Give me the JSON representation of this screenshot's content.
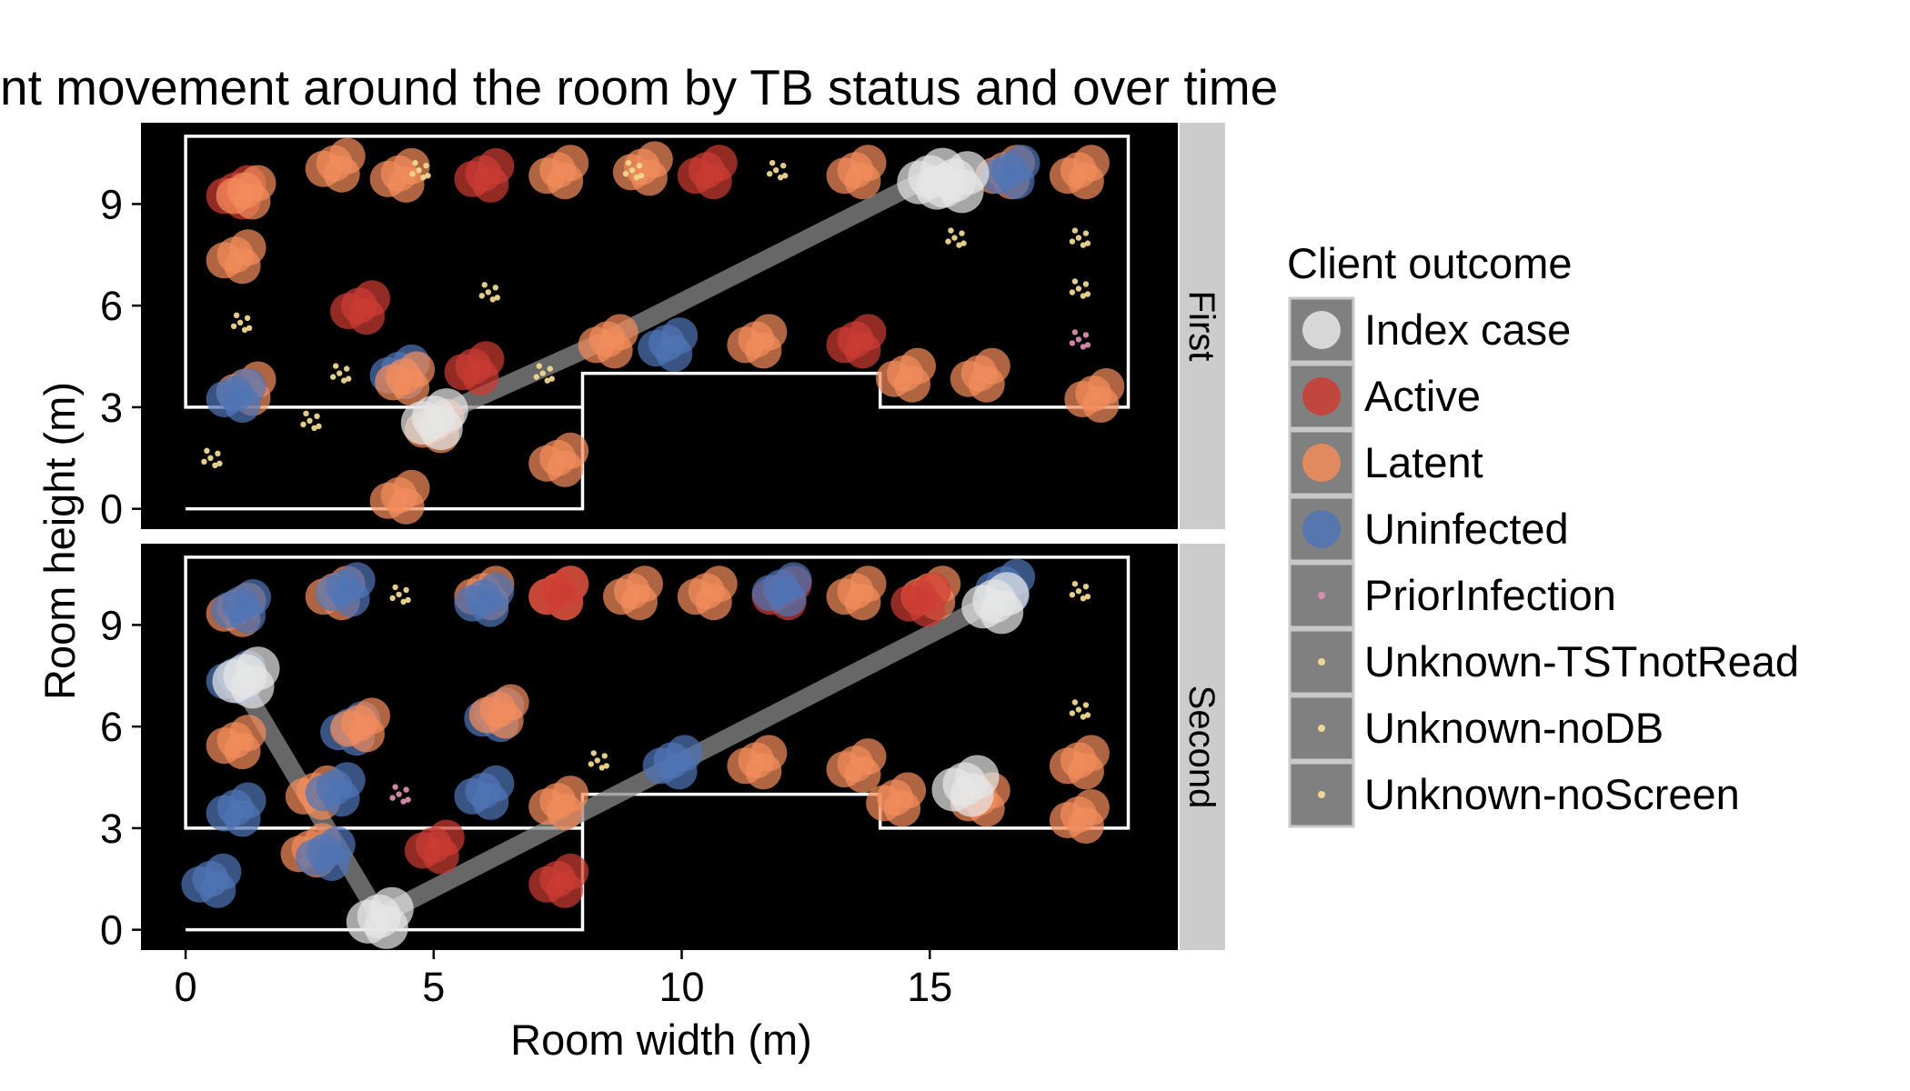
{
  "chart_data": {
    "type": "scatter",
    "title": "nt movement around the room by TB status and over time",
    "xlabel": "Room width (m)",
    "ylabel": "Room height (m)",
    "xlim": [
      -0.9,
      20.0
    ],
    "ylim": [
      -0.6,
      11.4
    ],
    "x_ticks": [
      0,
      5,
      10,
      15
    ],
    "y_ticks": [
      0,
      3,
      6,
      9
    ],
    "background": "#000000",
    "grid": false,
    "legend": {
      "title": "Client outcome",
      "placement": "right",
      "entries": [
        {
          "label": "Index case",
          "color": "#e6e6e6",
          "size": "large"
        },
        {
          "label": "Active",
          "color": "#cc3c33",
          "size": "large"
        },
        {
          "label": "Latent",
          "color": "#f28c5b",
          "size": "large"
        },
        {
          "label": "Uninfected",
          "color": "#4f74b5",
          "size": "large"
        },
        {
          "label": "PriorInfection",
          "color": "#d98cb0",
          "size": "small"
        },
        {
          "label": "Unknown-TSTnotRead",
          "color": "#f0d890",
          "size": "small"
        },
        {
          "label": "Unknown-noDB",
          "color": "#f0d890",
          "size": "small"
        },
        {
          "label": "Unknown-noScreen",
          "color": "#f0d890",
          "size": "small"
        }
      ]
    },
    "room_outline": [
      [
        0,
        0
      ],
      [
        8,
        0
      ],
      [
        8,
        4
      ],
      [
        14,
        4
      ],
      [
        14,
        3
      ],
      [
        19,
        3
      ],
      [
        19,
        11
      ],
      [
        0,
        11
      ],
      [
        0,
        3
      ],
      [
        8,
        3
      ]
    ],
    "panels": [
      {
        "label": "First",
        "index_path": [
          [
            5.0,
            2.7
          ],
          [
            8.5,
            5.0
          ],
          [
            15.0,
            9.8
          ]
        ],
        "points": [
          {
            "x": 1.0,
            "y": 9.4,
            "status": "Active"
          },
          {
            "x": 1.2,
            "y": 9.4,
            "status": "Latent"
          },
          {
            "x": 1.0,
            "y": 7.5,
            "status": "Latent"
          },
          {
            "x": 1.2,
            "y": 3.6,
            "status": "Latent"
          },
          {
            "x": 1.0,
            "y": 3.4,
            "status": "Uninfected"
          },
          {
            "x": 3.0,
            "y": 10.2,
            "status": "Latent"
          },
          {
            "x": 3.5,
            "y": 6.0,
            "status": "Active"
          },
          {
            "x": 4.3,
            "y": 9.9,
            "status": "Latent"
          },
          {
            "x": 4.3,
            "y": 4.1,
            "status": "Uninfected"
          },
          {
            "x": 4.4,
            "y": 3.9,
            "status": "Latent"
          },
          {
            "x": 6.0,
            "y": 9.9,
            "status": "Active"
          },
          {
            "x": 5.8,
            "y": 4.2,
            "status": "Active"
          },
          {
            "x": 4.3,
            "y": 0.4,
            "status": "Latent"
          },
          {
            "x": 5.0,
            "y": 2.5,
            "status": "Latent"
          },
          {
            "x": 7.5,
            "y": 10.0,
            "status": "Latent"
          },
          {
            "x": 7.5,
            "y": 1.5,
            "status": "Latent"
          },
          {
            "x": 8.5,
            "y": 5.0,
            "status": "Latent"
          },
          {
            "x": 9.2,
            "y": 10.1,
            "status": "Latent"
          },
          {
            "x": 9.7,
            "y": 4.9,
            "status": "Uninfected"
          },
          {
            "x": 10.5,
            "y": 10.0,
            "status": "Active"
          },
          {
            "x": 11.5,
            "y": 5.0,
            "status": "Latent"
          },
          {
            "x": 13.5,
            "y": 10.0,
            "status": "Latent"
          },
          {
            "x": 13.5,
            "y": 5.0,
            "status": "Active"
          },
          {
            "x": 14.5,
            "y": 4.0,
            "status": "Latent"
          },
          {
            "x": 16.0,
            "y": 4.0,
            "status": "Latent"
          },
          {
            "x": 16.5,
            "y": 10.0,
            "status": "Latent"
          },
          {
            "x": 16.6,
            "y": 10.0,
            "status": "Uninfected"
          },
          {
            "x": 18.0,
            "y": 10.0,
            "status": "Latent"
          },
          {
            "x": 18.3,
            "y": 3.4,
            "status": "Latent"
          },
          {
            "x": 18.0,
            "y": 5.0,
            "status": "PriorInfection"
          },
          {
            "x": 0.5,
            "y": 1.5,
            "status": "Unknown-TSTnotRead"
          },
          {
            "x": 1.1,
            "y": 5.5,
            "status": "Unknown-TSTnotRead"
          },
          {
            "x": 2.5,
            "y": 2.6,
            "status": "Unknown-noDB"
          },
          {
            "x": 3.1,
            "y": 4.0,
            "status": "Unknown-noDB"
          },
          {
            "x": 4.7,
            "y": 10.0,
            "status": "Unknown-noScreen"
          },
          {
            "x": 6.1,
            "y": 6.4,
            "status": "Unknown-TSTnotRead"
          },
          {
            "x": 7.2,
            "y": 4.0,
            "status": "Unknown-noScreen"
          },
          {
            "x": 9.0,
            "y": 10.0,
            "status": "Unknown-noScreen"
          },
          {
            "x": 11.9,
            "y": 10.0,
            "status": "Unknown-noDB"
          },
          {
            "x": 15.5,
            "y": 8.0,
            "status": "Unknown-noDB"
          },
          {
            "x": 18.0,
            "y": 8.0,
            "status": "Unknown-noScreen"
          },
          {
            "x": 18.0,
            "y": 6.5,
            "status": "Unknown-noScreen"
          },
          {
            "x": 15.0,
            "y": 9.8,
            "status": "Index case"
          },
          {
            "x": 15.5,
            "y": 9.7,
            "status": "Index case"
          },
          {
            "x": 5.0,
            "y": 2.7,
            "status": "Index case"
          }
        ]
      },
      {
        "label": "Second",
        "index_path": [
          [
            1.1,
            7.3
          ],
          [
            3.9,
            0.4
          ],
          [
            16.3,
            9.7
          ]
        ],
        "points": [
          {
            "x": 1.0,
            "y": 9.5,
            "status": "Latent"
          },
          {
            "x": 1.1,
            "y": 9.6,
            "status": "Uninfected"
          },
          {
            "x": 1.0,
            "y": 7.5,
            "status": "Uninfected"
          },
          {
            "x": 1.0,
            "y": 5.6,
            "status": "Latent"
          },
          {
            "x": 1.0,
            "y": 3.6,
            "status": "Uninfected"
          },
          {
            "x": 0.5,
            "y": 1.5,
            "status": "Uninfected"
          },
          {
            "x": 3.0,
            "y": 10.0,
            "status": "Latent"
          },
          {
            "x": 3.2,
            "y": 10.1,
            "status": "Uninfected"
          },
          {
            "x": 3.3,
            "y": 6.0,
            "status": "Uninfected"
          },
          {
            "x": 3.5,
            "y": 6.1,
            "status": "Latent"
          },
          {
            "x": 2.6,
            "y": 4.1,
            "status": "Latent"
          },
          {
            "x": 3.0,
            "y": 4.2,
            "status": "Uninfected"
          },
          {
            "x": 2.5,
            "y": 2.4,
            "status": "Latent"
          },
          {
            "x": 2.8,
            "y": 2.3,
            "status": "Uninfected"
          },
          {
            "x": 5.0,
            "y": 2.5,
            "status": "Active"
          },
          {
            "x": 6.0,
            "y": 10.0,
            "status": "Latent"
          },
          {
            "x": 6.0,
            "y": 9.8,
            "status": "Uninfected"
          },
          {
            "x": 6.2,
            "y": 6.4,
            "status": "Uninfected"
          },
          {
            "x": 6.3,
            "y": 6.5,
            "status": "Latent"
          },
          {
            "x": 6.0,
            "y": 4.1,
            "status": "Uninfected"
          },
          {
            "x": 7.5,
            "y": 10.0,
            "status": "Latent"
          },
          {
            "x": 7.5,
            "y": 10.0,
            "status": "Active"
          },
          {
            "x": 7.5,
            "y": 3.8,
            "status": "Latent"
          },
          {
            "x": 7.5,
            "y": 1.5,
            "status": "Active"
          },
          {
            "x": 9.0,
            "y": 10.0,
            "status": "Latent"
          },
          {
            "x": 9.8,
            "y": 5.0,
            "status": "Uninfected"
          },
          {
            "x": 10.5,
            "y": 10.0,
            "status": "Latent"
          },
          {
            "x": 11.5,
            "y": 5.0,
            "status": "Latent"
          },
          {
            "x": 12.0,
            "y": 10.0,
            "status": "Active"
          },
          {
            "x": 12.0,
            "y": 10.1,
            "status": "Uninfected"
          },
          {
            "x": 13.5,
            "y": 10.0,
            "status": "Latent"
          },
          {
            "x": 13.5,
            "y": 4.9,
            "status": "Latent"
          },
          {
            "x": 15.0,
            "y": 10.0,
            "status": "Latent"
          },
          {
            "x": 14.8,
            "y": 9.8,
            "status": "Active"
          },
          {
            "x": 14.3,
            "y": 3.9,
            "status": "Latent"
          },
          {
            "x": 16.0,
            "y": 3.9,
            "status": "Latent"
          },
          {
            "x": 16.5,
            "y": 10.2,
            "status": "Uninfected"
          },
          {
            "x": 18.0,
            "y": 5.0,
            "status": "Latent"
          },
          {
            "x": 18.0,
            "y": 3.4,
            "status": "Latent"
          },
          {
            "x": 4.3,
            "y": 4.0,
            "status": "PriorInfection"
          },
          {
            "x": 4.3,
            "y": 9.9,
            "status": "Unknown-noDB"
          },
          {
            "x": 8.3,
            "y": 5.0,
            "status": "Unknown-TSTnotRead"
          },
          {
            "x": 18.0,
            "y": 10.0,
            "status": "Unknown-noScreen"
          },
          {
            "x": 18.0,
            "y": 6.5,
            "status": "Unknown-noScreen"
          },
          {
            "x": 1.2,
            "y": 7.5,
            "status": "Index case"
          },
          {
            "x": 3.9,
            "y": 0.4,
            "status": "Index case"
          },
          {
            "x": 15.7,
            "y": 4.3,
            "status": "Index case"
          },
          {
            "x": 16.3,
            "y": 9.7,
            "status": "Index case"
          }
        ]
      }
    ]
  }
}
